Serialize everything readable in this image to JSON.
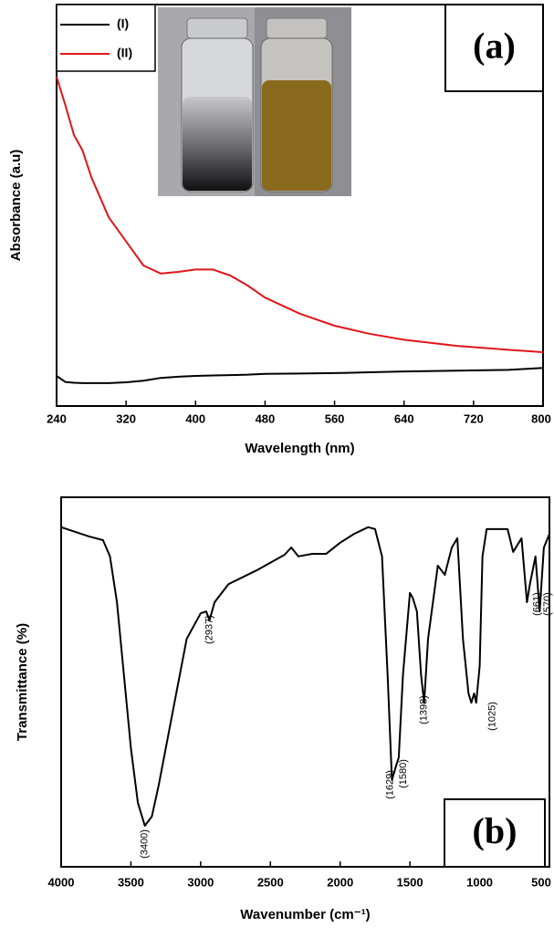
{
  "chart_data": [
    {
      "type": "line",
      "label": "(a)",
      "x_label": "Wavelength (nm)",
      "y_label": "Absorbance (a.u)",
      "x": [
        240,
        250,
        260,
        270,
        280,
        300,
        320,
        340,
        360,
        380,
        400,
        420,
        440,
        460,
        480,
        520,
        560,
        600,
        640,
        700,
        760,
        800
      ],
      "xlim": [
        240,
        800
      ],
      "xticks": [
        240,
        320,
        400,
        480,
        560,
        640,
        720,
        800
      ],
      "ylim": [
        0,
        1
      ],
      "series": [
        {
          "name": "(I)",
          "color": "#000000",
          "values": [
            0.075,
            0.06,
            0.058,
            0.057,
            0.057,
            0.057,
            0.059,
            0.063,
            0.07,
            0.073,
            0.075,
            0.076,
            0.077,
            0.078,
            0.08,
            0.081,
            0.082,
            0.084,
            0.086,
            0.088,
            0.09,
            0.095
          ]
        },
        {
          "name": "(II)",
          "color": "#e0161b",
          "values": [
            0.82,
            0.75,
            0.675,
            0.636,
            0.57,
            0.47,
            0.41,
            0.35,
            0.33,
            0.334,
            0.34,
            0.34,
            0.325,
            0.3,
            0.27,
            0.23,
            0.2,
            0.18,
            0.165,
            0.15,
            0.14,
            0.134
          ]
        }
      ]
    },
    {
      "type": "line",
      "label": "(b)",
      "x_label": "Wavenumber (cm⁻¹)",
      "y_label": "Transmittance (%)",
      "x": [
        4000,
        3800,
        3700,
        3650,
        3600,
        3550,
        3500,
        3450,
        3400,
        3350,
        3300,
        3200,
        3100,
        3000,
        2960,
        2937,
        2900,
        2800,
        2600,
        2400,
        2350,
        2300,
        2200,
        2100,
        2000,
        1900,
        1800,
        1750,
        1700,
        1660,
        1629,
        1600,
        1580,
        1550,
        1500,
        1480,
        1450,
        1420,
        1398,
        1370,
        1300,
        1250,
        1200,
        1160,
        1120,
        1080,
        1060,
        1040,
        1025,
        1000,
        980,
        950,
        800,
        760,
        700,
        661,
        640,
        600,
        570,
        540,
        500
      ],
      "xlim": [
        4000,
        500
      ],
      "xticks": [
        4000,
        3500,
        3000,
        2500,
        2000,
        1500,
        1000,
        500
      ],
      "ylim": [
        0,
        1
      ],
      "color": "#000000",
      "values": [
        0.919,
        0.894,
        0.884,
        0.84,
        0.716,
        0.519,
        0.321,
        0.173,
        0.111,
        0.136,
        0.222,
        0.42,
        0.617,
        0.686,
        0.691,
        0.667,
        0.716,
        0.765,
        0.802,
        0.844,
        0.864,
        0.84,
        0.847,
        0.847,
        0.877,
        0.901,
        0.919,
        0.914,
        0.84,
        0.519,
        0.235,
        0.272,
        0.296,
        0.519,
        0.741,
        0.728,
        0.691,
        0.519,
        0.444,
        0.617,
        0.815,
        0.79,
        0.864,
        0.889,
        0.617,
        0.469,
        0.444,
        0.469,
        0.444,
        0.543,
        0.84,
        0.914,
        0.914,
        0.852,
        0.889,
        0.716,
        0.765,
        0.84,
        0.691,
        0.864,
        0.901
      ],
      "annotations": [
        {
          "text": "(3400)",
          "x": 3400
        },
        {
          "text": "(2937)",
          "x": 2937
        },
        {
          "text": "(1629)",
          "x": 1629
        },
        {
          "text": "(1580)",
          "x": 1580
        },
        {
          "text": "(1398)",
          "x": 1398
        },
        {
          "text": "(1025)",
          "x": 1025
        },
        {
          "text": "(661)",
          "x": 661
        },
        {
          "text": "(570)",
          "x": 570
        }
      ]
    }
  ]
}
